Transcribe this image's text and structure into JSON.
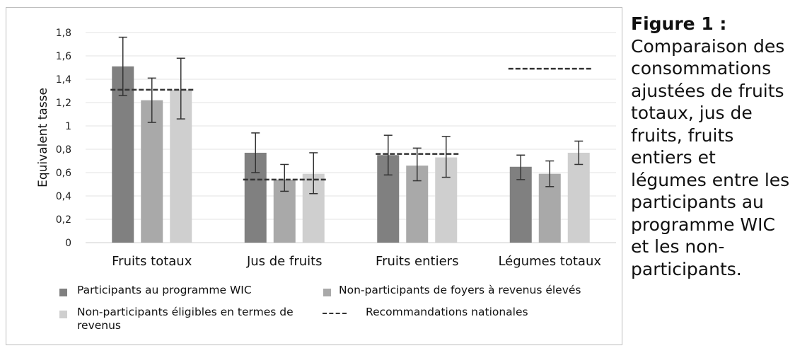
{
  "caption": {
    "title": "Figure 1 :",
    "body": "Comparaison des consommations ajustées de fruits totaux, jus de fruits, fruits entiers et légumes entre les participants au programme WIC et les non-participants."
  },
  "chart_data": {
    "type": "bar",
    "ylabel": "Equivalent tasse",
    "xlabel": "",
    "ylim": [
      0,
      1.8
    ],
    "yticks": [
      0,
      0.2,
      0.4,
      0.6,
      0.8,
      1,
      1.2,
      1.4,
      1.6,
      1.8
    ],
    "ytick_labels": [
      "0",
      "0,2",
      "0,4",
      "0,6",
      "0,8",
      "1",
      "1,2",
      "1,4",
      "1,6",
      "1,8"
    ],
    "grid": true,
    "categories": [
      "Fruits totaux",
      "Jus de fruits",
      "Fruits entiers",
      "Légumes totaux"
    ],
    "series": [
      {
        "name": "Participants au programme WIC",
        "color": "#808080",
        "values": [
          1.51,
          0.77,
          0.75,
          0.65
        ],
        "err_low": [
          1.26,
          0.6,
          0.58,
          0.54
        ],
        "err_high": [
          1.76,
          0.94,
          0.92,
          0.75
        ]
      },
      {
        "name": "Non-participants de foyers à revenus élevés",
        "color": "#a9a9a9",
        "values": [
          1.22,
          0.54,
          0.66,
          0.59
        ],
        "err_low": [
          1.03,
          0.44,
          0.53,
          0.48
        ],
        "err_high": [
          1.41,
          0.67,
          0.81,
          0.7
        ]
      },
      {
        "name": "Non-participants éligibles en termes de revenus",
        "color": "#cfcfcf",
        "values": [
          1.31,
          0.59,
          0.73,
          0.77
        ],
        "err_low": [
          1.06,
          0.42,
          0.56,
          0.67
        ],
        "err_high": [
          1.58,
          0.77,
          0.91,
          0.87
        ]
      }
    ],
    "recommendations": {
      "name": "Recommandations nationales",
      "values": [
        1.31,
        0.54,
        0.76,
        1.49
      ],
      "style": "dashed"
    },
    "legend_position": "bottom"
  }
}
